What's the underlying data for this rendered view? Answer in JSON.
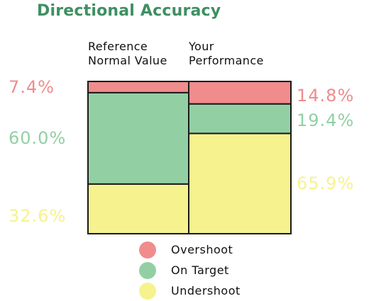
{
  "title": "Directional Accuracy",
  "colors": {
    "title": "#3f8f63",
    "overshoot": "#f08c8c",
    "on_target": "#92d0a4",
    "undershoot": "#f6f28e",
    "border": "#1a1a1a"
  },
  "chart_data": {
    "type": "bar",
    "stacked": true,
    "normalized": true,
    "title": "Directional Accuracy",
    "categories": [
      "Reference\nNormal Value",
      "Your\nPerformance"
    ],
    "series": [
      {
        "name": "Overshoot",
        "values": [
          7.4,
          14.8
        ]
      },
      {
        "name": "On Target",
        "values": [
          60.0,
          19.4
        ]
      },
      {
        "name": "Undershoot",
        "values": [
          32.6,
          65.9
        ]
      }
    ],
    "value_labels": {
      "reference": [
        "7.4%",
        "60.0%",
        "32.6%"
      ],
      "performance": [
        "14.8%",
        "19.4%",
        "65.9%"
      ]
    },
    "ylim": [
      0,
      100
    ],
    "legend_position": "bottom"
  },
  "legend": {
    "items": [
      {
        "label": "Overshoot"
      },
      {
        "label": "On Target"
      },
      {
        "label": "Undershoot"
      }
    ]
  }
}
